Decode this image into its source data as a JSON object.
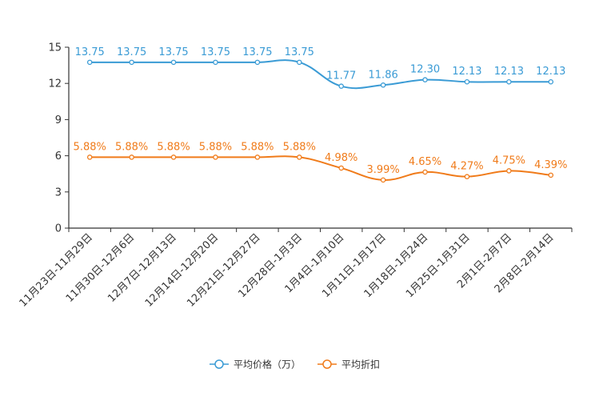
{
  "chart_data": {
    "type": "line",
    "title": "",
    "xlabel": "",
    "ylabel": "",
    "ylim": [
      0,
      15
    ],
    "yticks": [
      0,
      3,
      6,
      9,
      12,
      15
    ],
    "categories": [
      "11月23日-11月29日",
      "11月30日-12月6日",
      "12月7日-12月13日",
      "12月14日-12月20日",
      "12月21日-12月27日",
      "12月28日-1月3日",
      "1月4日-1月10日",
      "1月11日-1月17日",
      "1月18日-1月24日",
      "1月25日-1月31日",
      "2月1日-2月7日",
      "2月8日-2月14日"
    ],
    "series": [
      {
        "name": "平均价格（万）",
        "color": "#3a9bd5",
        "values": [
          13.75,
          13.75,
          13.75,
          13.75,
          13.75,
          13.75,
          11.77,
          11.86,
          12.3,
          12.13,
          12.13,
          12.13
        ],
        "labels": [
          "13.75",
          "13.75",
          "13.75",
          "13.75",
          "13.75",
          "13.75",
          "11.77",
          "11.86",
          "12.30",
          "12.13",
          "12.13",
          "12.13"
        ]
      },
      {
        "name": "平均折扣",
        "color": "#f07b1a",
        "values": [
          5.88,
          5.88,
          5.88,
          5.88,
          5.88,
          5.88,
          4.98,
          3.99,
          4.65,
          4.27,
          4.75,
          4.39
        ],
        "labels": [
          "5.88%",
          "5.88%",
          "5.88%",
          "5.88%",
          "5.88%",
          "5.88%",
          "4.98%",
          "3.99%",
          "4.65%",
          "4.27%",
          "4.75%",
          "4.39%"
        ]
      }
    ],
    "legend": "bottom-center",
    "grid": false
  }
}
